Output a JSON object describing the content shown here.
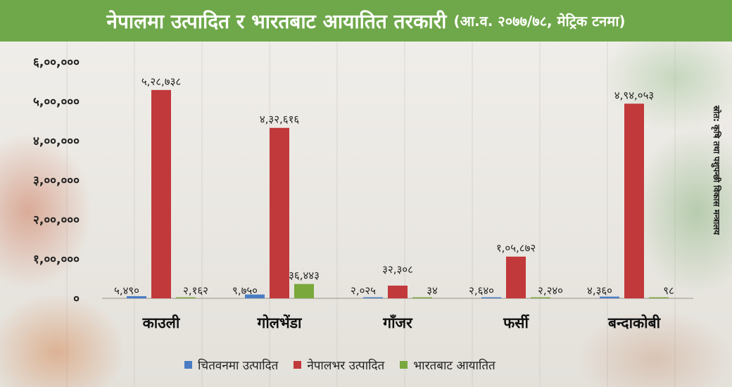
{
  "title": {
    "main": "नेपालमा उत्पादित र भारतबाट आयातित तरकारी",
    "sub": "(आ.व. २०७७/७८, मेट्रिक टनमा)"
  },
  "source": "स्रोत: कृषि तथा पशुपन्छी विकास मन्त्रालय",
  "colors": {
    "title_bar": "#6fa84a",
    "chitwan": "#4a7cc4",
    "nepal": "#c1393a",
    "india": "#7aa83c"
  },
  "chart_data": {
    "type": "bar",
    "categories": [
      "काउली",
      "गोलभेंडा",
      "गाँजर",
      "फर्सी",
      "बन्दाकोबी"
    ],
    "series": [
      {
        "name": "चितवनमा उत्पादित",
        "values": [
          5490,
          9750,
          2025,
          2640,
          4360
        ],
        "labels": [
          "५,४९०",
          "९,७५०",
          "२,०२५",
          "२,६४०",
          "४,३६०"
        ]
      },
      {
        "name": "नेपालभर उत्पादित",
        "values": [
          528738,
          432616,
          32308,
          105872,
          494053
        ],
        "labels": [
          "५,२८,७३८",
          "४,३२,६१६",
          "३२,३०८",
          "१,०५,८७२",
          "४,९४,०५३"
        ]
      },
      {
        "name": "भारतबाट आयातित",
        "values": [
          2162,
          36443,
          34,
          2240,
          98
        ],
        "labels": [
          "२,१६२",
          "३६,४४३",
          "३४",
          "२,२४०",
          "९८"
        ]
      }
    ],
    "ylim": [
      0,
      600000
    ],
    "yticks": [
      0,
      100000,
      200000,
      300000,
      400000,
      500000,
      600000
    ],
    "ytick_labels": [
      "०",
      "१,००,०००",
      "२,००,०००",
      "३,००,०००",
      "४,००,०००",
      "५,००,०००",
      "६,००,०००"
    ],
    "grid": false,
    "legend": "bottom"
  }
}
